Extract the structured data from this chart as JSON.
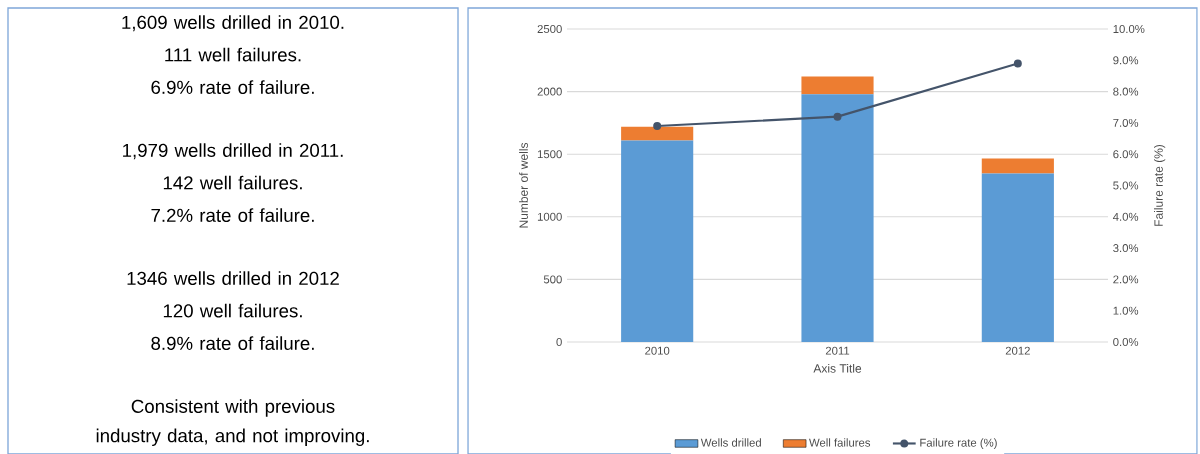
{
  "chart_data": [
    {
      "type": "other",
      "annotations": [
        "1,609 wells drilled in 2010.",
        "111 well failures.",
        "6.9% rate of failure.",
        "1,979 wells drilled in 2011.",
        "142 well failures.",
        "7.2% rate of failure.",
        "1346 wells drilled in 2012",
        "120 well failures.",
        "8.9% rate of failure.",
        "Consistent with previous industry data, and not improving."
      ]
    },
    {
      "type": "bar",
      "stacked": true,
      "categories": [
        "2010",
        "2011",
        "2012"
      ],
      "xlabel": "Axis Title",
      "ylabel": "Number of wells",
      "y2label": "Failure rate (%)",
      "ylim": [
        0,
        2500
      ],
      "yticks": [
        0,
        500,
        1000,
        1500,
        2000,
        2500
      ],
      "y2lim": [
        0,
        10
      ],
      "y2ticks": [
        {
          "value": 0,
          "label": "0.0%"
        },
        {
          "value": 1,
          "label": "1.0%"
        },
        {
          "value": 2,
          "label": "2.0%"
        },
        {
          "value": 3,
          "label": "3.0%"
        },
        {
          "value": 4,
          "label": "4.0%"
        },
        {
          "value": 5,
          "label": "5.0%"
        },
        {
          "value": 6,
          "label": "6.0%"
        },
        {
          "value": 7,
          "label": "7.0%"
        },
        {
          "value": 8,
          "label": "8.0%"
        },
        {
          "value": 9,
          "label": "9.0%"
        },
        {
          "value": 10,
          "label": "10.0%"
        }
      ],
      "grid": "y",
      "legend": "bottom",
      "series": [
        {
          "name": "Wells drilled",
          "color": "#5b9bd5",
          "values": [
            1609,
            1979,
            1346
          ]
        },
        {
          "name": "Well failures",
          "color": "#ed7d31",
          "values": [
            111,
            142,
            120
          ]
        },
        {
          "name": "Failure rate (%)",
          "type": "line",
          "axis": "y2",
          "marker": "circle",
          "color": "#44546a",
          "values": [
            6.9,
            7.2,
            8.9
          ]
        }
      ]
    }
  ]
}
